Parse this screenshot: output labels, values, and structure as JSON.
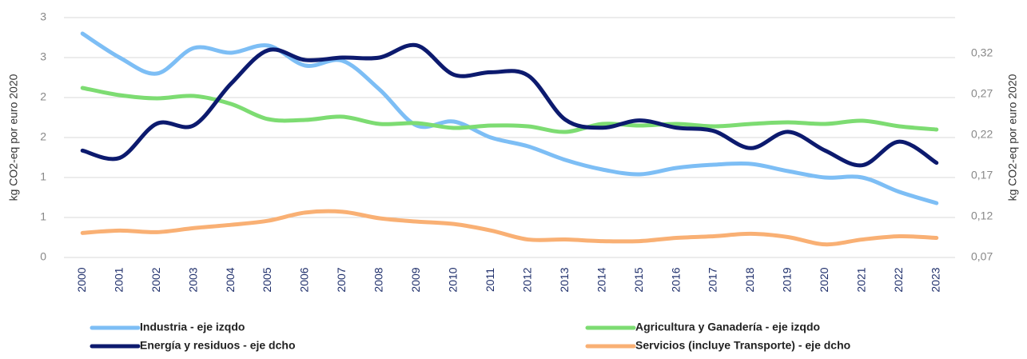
{
  "chart_data": {
    "type": "line",
    "y_label": "kg CO2-eq  por euro 2020",
    "y2_label": "kg CO2-eq  por euro 2020",
    "categories": [
      "2000",
      "2001",
      "2002",
      "2003",
      "2004",
      "2005",
      "2006",
      "2007",
      "2008",
      "2009",
      "2010",
      "2011",
      "2012",
      "2013",
      "2014",
      "2015",
      "2016",
      "2017",
      "2018",
      "2019",
      "2020",
      "2021",
      "2022",
      "2023"
    ],
    "ylim": [
      0,
      3
    ],
    "yticks": [
      0,
      {
        "value": 0.5,
        "label": "1"
      },
      1,
      {
        "value": 1.5,
        "label": "2"
      },
      2,
      {
        "value": 2.5,
        "label": "3"
      },
      3
    ],
    "y2lim": [
      0.07,
      0.364
    ],
    "y2ticks": [
      {
        "value": 0.07,
        "label": "0,07"
      },
      {
        "value": 0.12,
        "label": "0,12"
      },
      {
        "value": 0.17,
        "label": "0,17"
      },
      {
        "value": 0.22,
        "label": "0,22"
      },
      {
        "value": 0.27,
        "label": "0,27"
      },
      {
        "value": 0.32,
        "label": "0,32"
      }
    ],
    "grid": true,
    "series": [
      {
        "name": "Industria - eje izqdo",
        "color": "#7dbef5",
        "axis": "y",
        "values": [
          2.8,
          2.5,
          2.3,
          2.62,
          2.56,
          2.65,
          2.4,
          2.46,
          2.1,
          1.65,
          1.7,
          1.5,
          1.39,
          1.22,
          1.1,
          1.04,
          1.12,
          1.16,
          1.17,
          1.08,
          1.0,
          1.0,
          0.82,
          0.68
        ]
      },
      {
        "name": "Agricultura y Ganadería - eje izqdo",
        "color": "#7ddc72",
        "axis": "y",
        "values": [
          2.12,
          2.03,
          1.99,
          2.02,
          1.92,
          1.73,
          1.72,
          1.76,
          1.67,
          1.68,
          1.62,
          1.65,
          1.64,
          1.57,
          1.67,
          1.65,
          1.67,
          1.64,
          1.67,
          1.69,
          1.67,
          1.71,
          1.64,
          1.6
        ]
      },
      {
        "name": "Energía y residuos - eje dcho",
        "color": "#0c1a6e",
        "axis": "y2",
        "values": [
          0.201,
          0.192,
          0.234,
          0.232,
          0.283,
          0.324,
          0.312,
          0.315,
          0.315,
          0.33,
          0.294,
          0.297,
          0.293,
          0.239,
          0.229,
          0.238,
          0.229,
          0.225,
          0.204,
          0.224,
          0.201,
          0.183,
          0.212,
          0.186
        ]
      },
      {
        "name": "Servicios (incluye Transporte) - eje dcho",
        "color": "#f9b074",
        "axis": "y2",
        "values": [
          0.1,
          0.103,
          0.101,
          0.106,
          0.11,
          0.115,
          0.125,
          0.126,
          0.118,
          0.114,
          0.111,
          0.103,
          0.092,
          0.092,
          0.09,
          0.09,
          0.094,
          0.096,
          0.099,
          0.095,
          0.086,
          0.092,
          0.096,
          0.094
        ]
      }
    ]
  }
}
